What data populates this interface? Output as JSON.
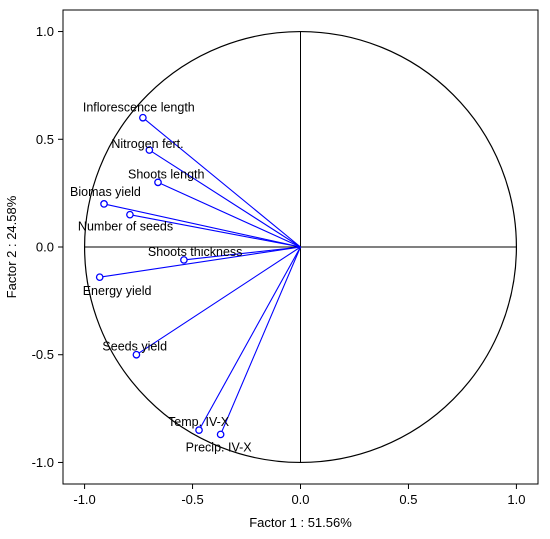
{
  "chart_data": {
    "type": "scatter",
    "subtype": "pca-correlation-circle",
    "title": "",
    "xlabel": "Factor 1 : 51.56%",
    "ylabel": "Factor 2 : 24.58%",
    "xlim": [
      -1.1,
      1.1
    ],
    "ylim": [
      -1.1,
      1.1
    ],
    "x_ticks": [
      "-1.0",
      "-0.5",
      "0.0",
      "0.5",
      "1.0"
    ],
    "y_ticks": [
      "1.0",
      "0.5",
      "0.0",
      "-0.5",
      "-1.0"
    ],
    "grid": false,
    "unit_circle": true,
    "series": [
      {
        "color": "#0000ff",
        "points": [
          {
            "label": "Inflorescence length",
            "x": -0.73,
            "y": 0.6
          },
          {
            "label": "Nitrogen fert.",
            "x": -0.7,
            "y": 0.45
          },
          {
            "label": "Shoots length",
            "x": -0.66,
            "y": 0.3
          },
          {
            "label": "Biomas yield",
            "x": -0.91,
            "y": 0.2
          },
          {
            "label": "Number of seeds",
            "x": -0.79,
            "y": 0.15
          },
          {
            "label": "Shoots thickness",
            "x": -0.54,
            "y": -0.06
          },
          {
            "label": "Energy yield",
            "x": -0.93,
            "y": -0.14
          },
          {
            "label": "Seeds yield",
            "x": -0.76,
            "y": -0.5
          },
          {
            "label": "Temp. IV-X",
            "x": -0.47,
            "y": -0.85
          },
          {
            "label": "Precip. IV-X",
            "x": -0.37,
            "y": -0.87
          }
        ]
      }
    ]
  }
}
